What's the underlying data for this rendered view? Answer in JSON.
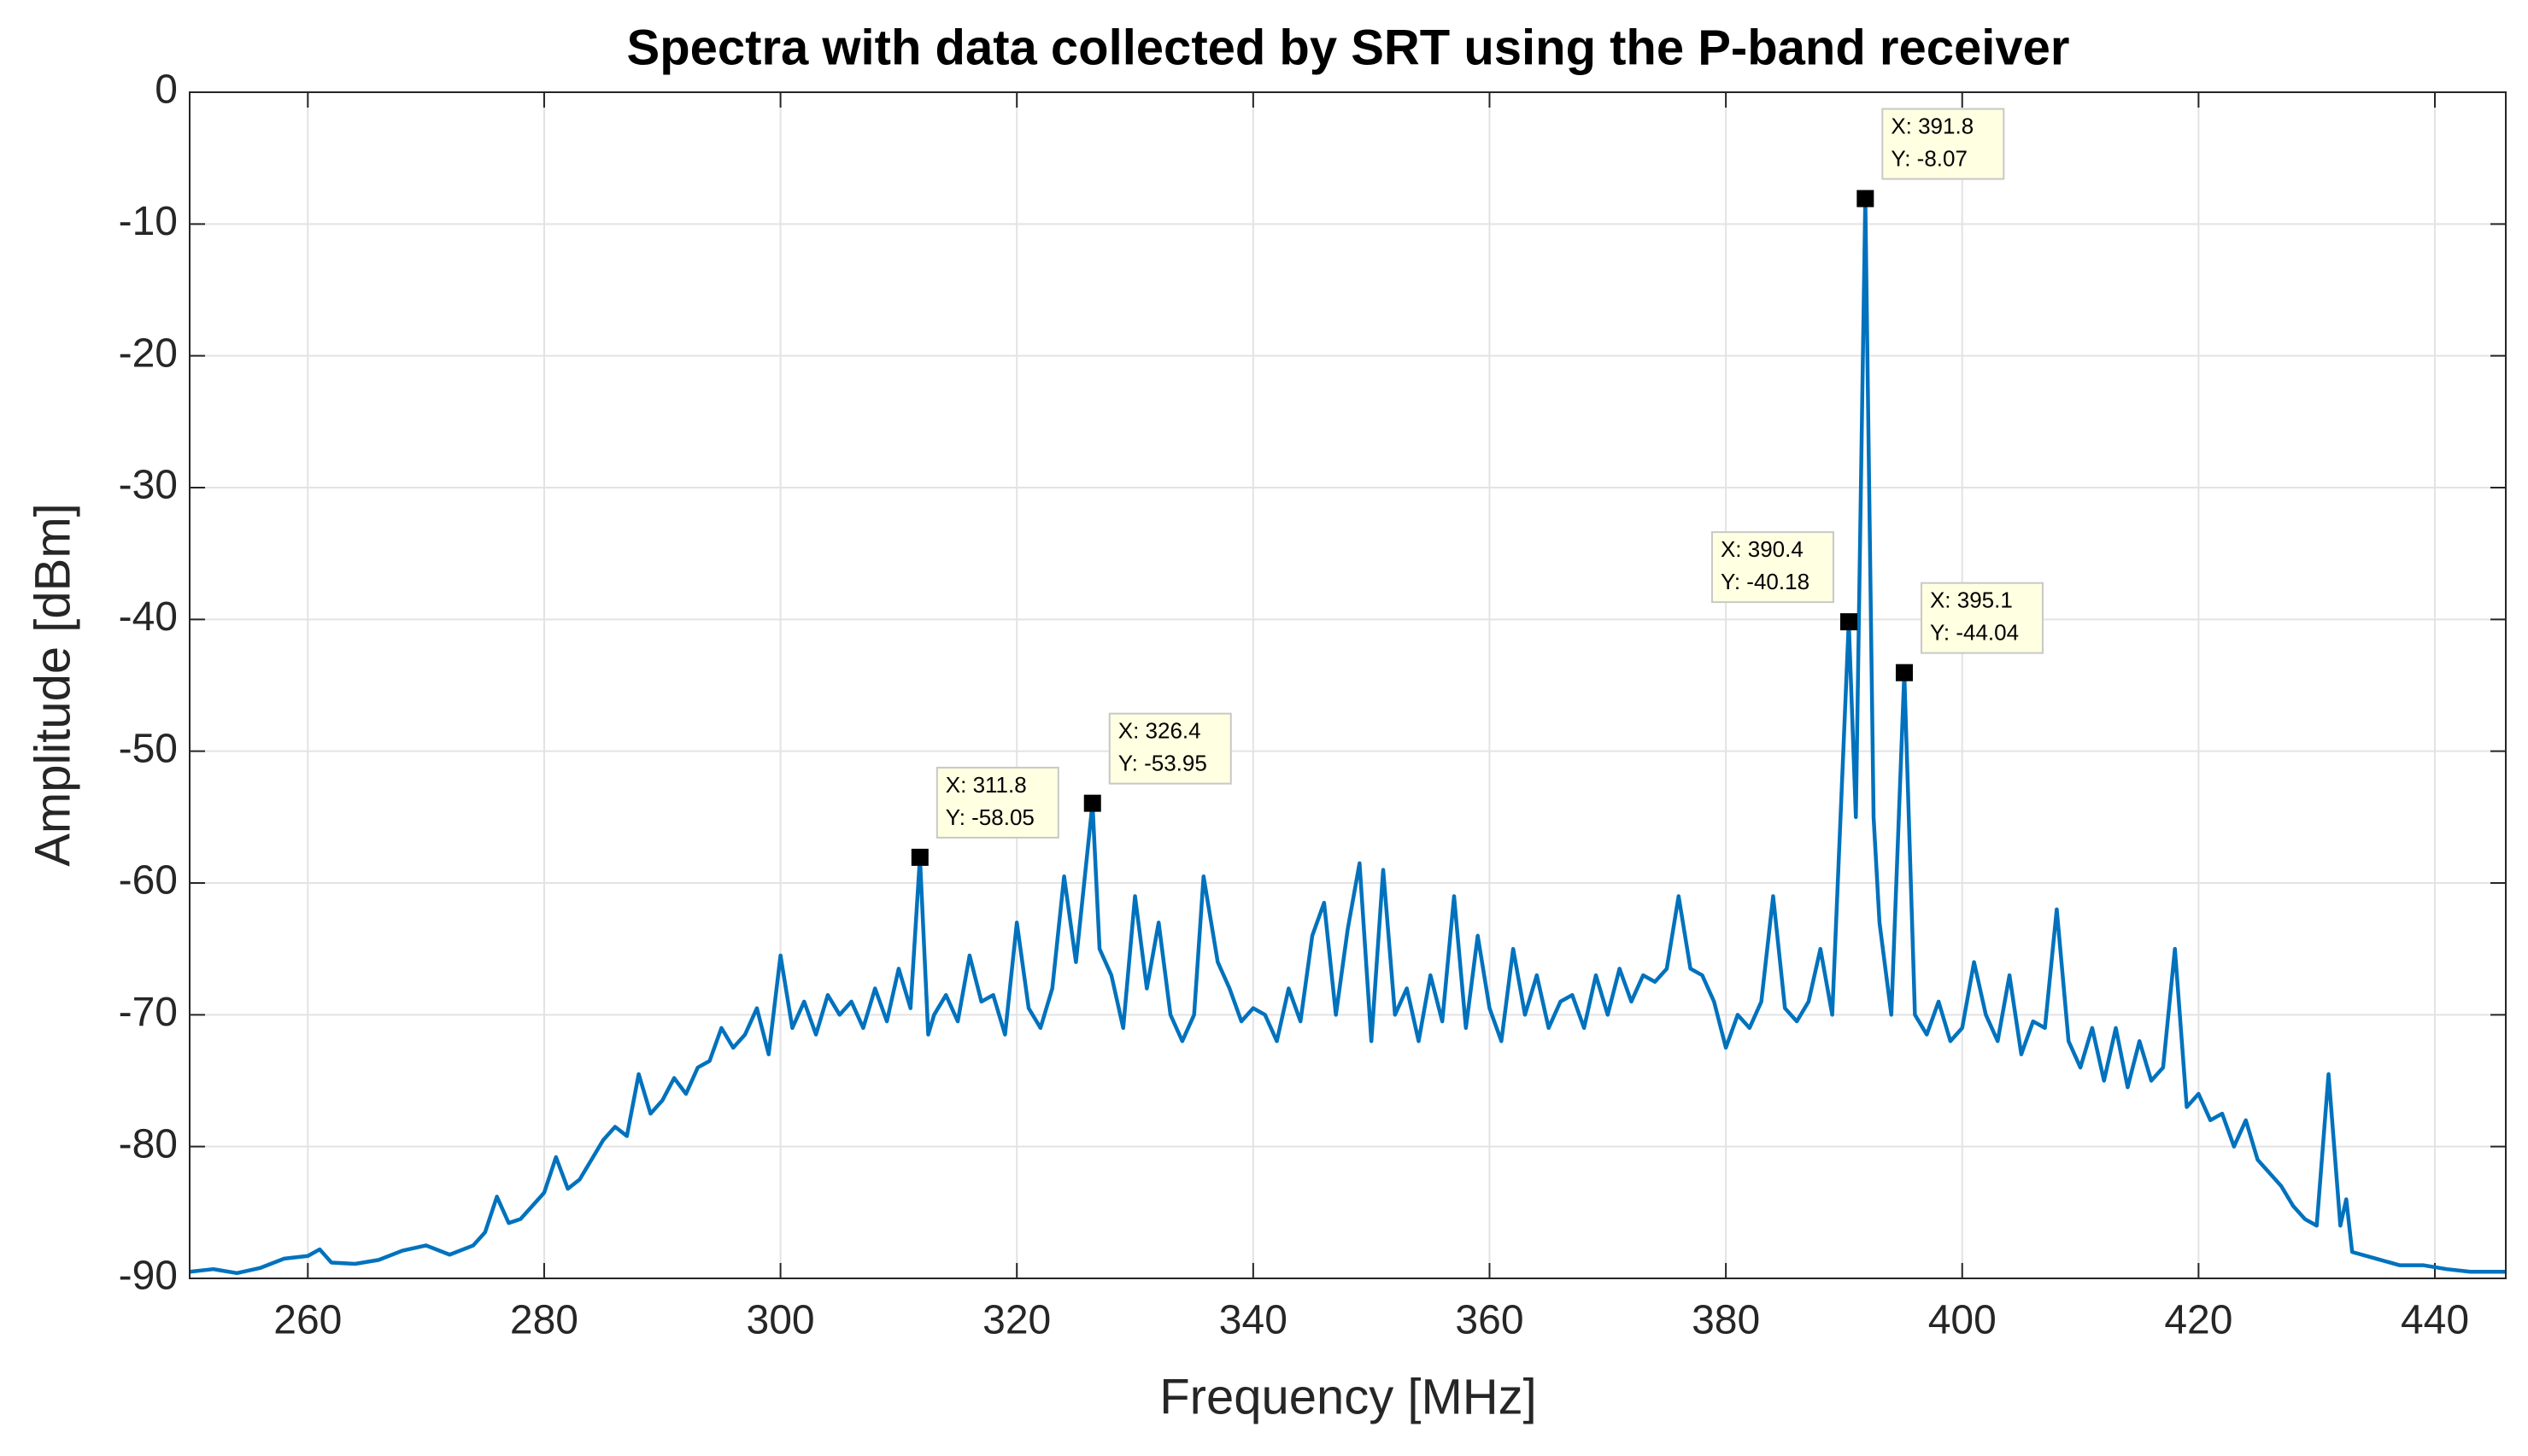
{
  "chart_data": {
    "type": "line",
    "title": "Spectra with data collected by SRT using the P-band receiver",
    "x_label": "Frequency [MHz]",
    "y_label": "Amplitude [dBm]",
    "color": "#0072bd",
    "grid": true,
    "xlim": [
      250,
      446
    ],
    "ylim": [
      -90,
      0
    ],
    "xticks": [
      260,
      280,
      300,
      320,
      340,
      360,
      380,
      400,
      420,
      440
    ],
    "yticks": [
      -90,
      -80,
      -70,
      -60,
      -50,
      -40,
      -30,
      -20,
      -10,
      0
    ],
    "x": [
      250,
      252,
      254,
      256,
      258,
      260,
      261,
      262,
      264,
      266,
      268,
      270,
      272,
      274,
      275,
      276,
      277,
      278,
      280,
      281,
      282,
      283,
      284,
      285,
      286,
      287,
      288,
      289,
      290,
      291,
      292,
      293,
      294,
      295,
      296,
      297,
      298,
      299,
      300,
      301,
      302,
      303,
      304,
      305,
      306,
      307,
      308,
      309,
      310,
      311,
      311.8,
      312.5,
      313,
      314,
      315,
      316,
      317,
      318,
      319,
      320,
      321,
      322,
      323,
      324,
      325,
      326.4,
      327,
      328,
      329,
      330,
      331,
      332,
      333,
      334,
      335,
      335.8,
      337,
      338,
      339,
      340,
      341,
      342,
      343,
      344,
      345,
      346,
      347,
      348,
      349,
      350,
      351,
      352,
      353,
      354,
      355,
      356,
      357,
      358,
      359,
      360,
      361,
      362,
      363,
      364,
      365,
      366,
      367,
      368,
      369,
      370,
      371,
      372,
      373,
      374,
      375,
      376,
      377,
      378,
      379,
      380,
      381,
      382,
      383,
      384,
      385,
      386,
      387,
      388,
      389,
      390.4,
      391,
      391.8,
      392.5,
      393,
      394,
      395.1,
      396,
      397,
      398,
      399,
      400,
      401,
      402,
      403,
      404,
      405,
      406,
      407,
      408,
      409,
      410,
      411,
      412,
      413,
      414,
      415,
      416,
      417,
      418,
      419,
      420,
      421,
      422,
      423,
      424,
      425,
      426,
      427,
      428,
      429,
      430,
      431,
      432,
      432.5,
      433,
      435,
      437,
      439,
      441,
      443,
      446
    ],
    "values": [
      -89.5,
      -89.3,
      -89.6,
      -89.2,
      -88.5,
      -88.3,
      -87.8,
      -88.8,
      -88.9,
      -88.6,
      -87.9,
      -87.5,
      -88.2,
      -87.5,
      -86.5,
      -83.8,
      -85.8,
      -85.5,
      -83.5,
      -80.8,
      -83.2,
      -82.5,
      -81,
      -79.5,
      -78.5,
      -79.2,
      -74.5,
      -77.5,
      -76.5,
      -74.8,
      -76,
      -74,
      -73.5,
      -71,
      -72.5,
      -71.5,
      -69.5,
      -73,
      -65.5,
      -71,
      -69,
      -71.5,
      -68.5,
      -70,
      -69,
      -71,
      -68,
      -70.5,
      -66.5,
      -69.5,
      -58.05,
      -71.5,
      -70,
      -68.5,
      -70.5,
      -65.5,
      -69,
      -68.5,
      -71.5,
      -63,
      -69.5,
      -71,
      -68,
      -59.5,
      -66,
      -53.95,
      -65,
      -67,
      -71,
      -61,
      -68,
      -63,
      -70,
      -72,
      -70,
      -59.5,
      -66,
      -68,
      -70.5,
      -69.5,
      -70,
      -72,
      -68,
      -70.5,
      -64,
      -61.5,
      -70,
      -63.5,
      -58.5,
      -72,
      -59,
      -70,
      -68,
      -72,
      -67,
      -70.5,
      -61,
      -71,
      -64,
      -69.5,
      -72,
      -65,
      -70,
      -67,
      -71,
      -69,
      -68.5,
      -71,
      -67,
      -70,
      -66.5,
      -69,
      -67,
      -67.5,
      -66.5,
      -61,
      -66.5,
      -67,
      -69,
      -72.5,
      -70,
      -71,
      -69,
      -61,
      -69.5,
      -70.5,
      -69,
      -65,
      -70,
      -40.18,
      -55,
      -8.07,
      -55,
      -63,
      -70,
      -44.04,
      -70,
      -71.5,
      -69,
      -72,
      -71,
      -66,
      -70,
      -72,
      -67,
      -73,
      -70.5,
      -71,
      -62,
      -72,
      -74,
      -71,
      -75,
      -71,
      -75.5,
      -72,
      -75,
      -74,
      -65,
      -77,
      -76,
      -78,
      -77.5,
      -80,
      -78,
      -81,
      -82,
      -83,
      -84.5,
      -85.5,
      -86,
      -74.5,
      -86,
      -84,
      -88,
      -88.5,
      -89,
      -89,
      -89.3,
      -89.5,
      -89.5
    ],
    "annotations": [
      {
        "x": 311.8,
        "y": -58.05,
        "text": [
          "X: 311.8",
          "Y: -58.05"
        ]
      },
      {
        "x": 326.4,
        "y": -53.95,
        "text": [
          "X: 326.4",
          "Y: -53.95"
        ]
      },
      {
        "x": 390.4,
        "y": -40.18,
        "text": [
          "X: 390.4",
          "Y: -40.18"
        ]
      },
      {
        "x": 391.8,
        "y": -8.07,
        "text": [
          "X: 391.8",
          "Y: -8.07"
        ]
      },
      {
        "x": 395.1,
        "y": -44.04,
        "text": [
          "X: 395.1",
          "Y: -44.04"
        ]
      }
    ]
  }
}
